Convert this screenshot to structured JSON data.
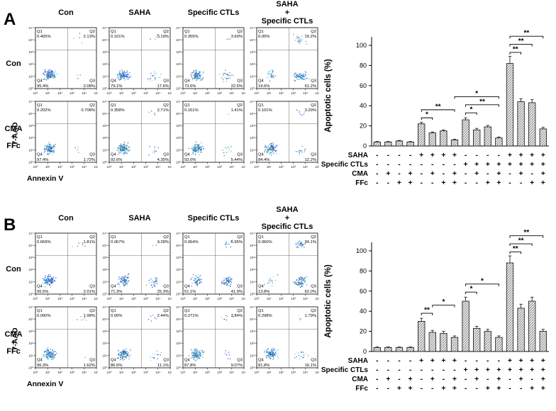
{
  "panels": [
    {
      "label": "A",
      "col_headers": [
        "Con",
        "SAHA",
        "Specific CTLs",
        "SAHA\n+\nSpecific CTLs"
      ],
      "row_headers": [
        "Con",
        "CMA\n+\nFFc"
      ],
      "x_axis_label": "Annexin V",
      "y_axis_label": "7-AAD",
      "flow_ticks": [
        "10⁰",
        "10¹",
        "10²",
        "10³",
        "10⁴",
        "10⁵"
      ],
      "quad_labels": {
        "q1": "Q1",
        "q2": "Q2",
        "q3": "Q3",
        "q4": "Q4"
      },
      "plots": [
        [
          {
            "q1": "0.405%",
            "q2": "2.13%",
            "q4": "95.4%",
            "q3": "2.08%"
          },
          {
            "q1": "0.101%",
            "q2": "3.19%",
            "q4": "79.1%",
            "q3": "17.6%"
          },
          {
            "q1": "0.355%",
            "q2": "3.60%",
            "q4": "73.6%",
            "q3": "22.5%"
          },
          {
            "q1": "0.00%",
            "q2": "19.2%",
            "q4": "19.6%",
            "q3": "61.2%"
          }
        ],
        [
          {
            "q1": "0.202%",
            "q2": "0.708%",
            "q4": "97.4%",
            "q3": "1.72%"
          },
          {
            "q1": "0.358%",
            "q2": "2.71%",
            "q4": "92.6%",
            "q3": "4.35%"
          },
          {
            "q1": "0.151%",
            "q2": "1.41%",
            "q4": "93.0%",
            "q3": "5.44%"
          },
          {
            "q1": "0.101%",
            "q2": "3.29%",
            "q4": "84.4%",
            "q3": "12.2%"
          }
        ]
      ]
    },
    {
      "label": "B",
      "col_headers": [
        "Con",
        "SAHA",
        "Specific CTLs",
        "SAHA\n+\nSpecific CTLs"
      ],
      "row_headers": [
        "Con",
        "CMA\n+\nFFc"
      ],
      "x_axis_label": "Annexin V",
      "y_axis_label": "7-AAD",
      "flow_ticks": [
        "10⁰",
        "10¹",
        "10²",
        "10³",
        "10⁴",
        "10⁵"
      ],
      "quad_labels": {
        "q1": "Q1",
        "q2": "Q2",
        "q3": "Q3",
        "q4": "Q4"
      },
      "plots": [
        [
          {
            "q1": "0.669%",
            "q2": "1.81%",
            "q4": "95.5%",
            "q3": "2.01%"
          },
          {
            "q1": "0.067%",
            "q2": "3.28%",
            "q4": "71.3%",
            "q3": "25.3%"
          },
          {
            "q1": "0.064%",
            "q2": "6.95%",
            "q4": "51.1%",
            "q3": "41.9%"
          },
          {
            "q1": "0.060%",
            "q2": "24.1%",
            "q4": "13.8%",
            "q3": "62.0%"
          }
        ],
        [
          {
            "q1": "0.090%",
            "q2": "1.98%",
            "q4": "96.3%",
            "q3": "1.62%"
          },
          {
            "q1": "0.00%",
            "q2": "2.44%",
            "q4": "86.5%",
            "q3": "11.1%"
          },
          {
            "q1": "0.271%",
            "q2": "2.84%",
            "q4": "87.8%",
            "q3": "9.07%"
          },
          {
            "q1": "0.298%",
            "q2": "1.79%",
            "q4": "81.8%",
            "q3": "16.1%"
          }
        ]
      ]
    }
  ],
  "chart_data": [
    {
      "type": "bar",
      "panel": "A",
      "title": "",
      "xlabel": "",
      "ylabel": "Apoptotic cells (%)",
      "ylim": [
        0,
        100
      ],
      "yticks": [
        0,
        20,
        40,
        60,
        80,
        100
      ],
      "values": [
        4,
        4,
        5,
        4,
        22,
        13,
        15,
        6,
        26,
        16,
        19,
        8,
        82,
        44,
        43,
        17
      ],
      "errors": [
        0.5,
        0.5,
        0.5,
        0.5,
        1.5,
        1,
        1,
        0.8,
        2,
        1.5,
        1.5,
        1,
        7,
        3,
        3,
        1.5
      ],
      "conditions": [
        {
          "label": "SAHA",
          "signs": [
            "-",
            "-",
            "-",
            "-",
            "+",
            "+",
            "+",
            "+",
            "-",
            "-",
            "-",
            "-",
            "+",
            "+",
            "+",
            "+"
          ]
        },
        {
          "label": "Specific CTLs",
          "signs": [
            "-",
            "-",
            "-",
            "-",
            "-",
            "-",
            "-",
            "-",
            "+",
            "+",
            "+",
            "+",
            "+",
            "+",
            "+",
            "+"
          ]
        },
        {
          "label": "CMA",
          "signs": [
            "-",
            "+",
            "-",
            "+",
            "-",
            "+",
            "-",
            "+",
            "-",
            "+",
            "-",
            "+",
            "-",
            "+",
            "-",
            "+"
          ]
        },
        {
          "label": "FFc",
          "signs": [
            "-",
            "-",
            "+",
            "+",
            "-",
            "-",
            "+",
            "+",
            "-",
            "-",
            "+",
            "+",
            "-",
            "-",
            "+",
            "+"
          ]
        }
      ],
      "significance": [
        {
          "from": 5,
          "to": 6,
          "label": "*",
          "y": 28
        },
        {
          "from": 5,
          "to": 8,
          "label": "**",
          "y": 36
        },
        {
          "from": 9,
          "to": 10,
          "label": "*",
          "y": 33
        },
        {
          "from": 9,
          "to": 12,
          "label": "**",
          "y": 41
        },
        {
          "from": 8,
          "to": 12,
          "label": "*",
          "y": 49
        },
        {
          "from": 13,
          "to": 14,
          "label": "**",
          "y": 93
        },
        {
          "from": 13,
          "to": 15,
          "label": "**",
          "y": 101
        },
        {
          "from": 13,
          "to": 16,
          "label": "**",
          "y": 109
        }
      ]
    },
    {
      "type": "bar",
      "panel": "B",
      "title": "",
      "xlabel": "",
      "ylabel": "Apoptotic cells (%)",
      "ylim": [
        0,
        100
      ],
      "yticks": [
        0,
        20,
        40,
        60,
        80,
        100
      ],
      "values": [
        4,
        4,
        4,
        4,
        30,
        19,
        18,
        14,
        50,
        23,
        20,
        14,
        88,
        43,
        50,
        20
      ],
      "errors": [
        0.5,
        0.5,
        0.5,
        0.5,
        3,
        2,
        2,
        1.5,
        4,
        2,
        2,
        1.5,
        7,
        4,
        4,
        2
      ],
      "conditions": [
        {
          "label": "SAHA",
          "signs": [
            "-",
            "-",
            "-",
            "-",
            "+",
            "+",
            "+",
            "+",
            "-",
            "-",
            "-",
            "-",
            "+",
            "+",
            "+",
            "+"
          ]
        },
        {
          "label": "Specific CTLs",
          "signs": [
            "-",
            "-",
            "-",
            "-",
            "-",
            "-",
            "-",
            "-",
            "+",
            "+",
            "+",
            "+",
            "+",
            "+",
            "+",
            "+"
          ]
        },
        {
          "label": "CMA",
          "signs": [
            "-",
            "+",
            "-",
            "+",
            "-",
            "+",
            "-",
            "+",
            "-",
            "+",
            "-",
            "+",
            "-",
            "+",
            "-",
            "+"
          ]
        },
        {
          "label": "FFc",
          "signs": [
            "-",
            "-",
            "+",
            "+",
            "-",
            "-",
            "+",
            "+",
            "-",
            "-",
            "+",
            "+",
            "-",
            "-",
            "+",
            "+"
          ]
        }
      ],
      "significance": [
        {
          "from": 5,
          "to": 6,
          "label": "**",
          "y": 38
        },
        {
          "from": 6,
          "to": 8,
          "label": "*",
          "y": 46
        },
        {
          "from": 9,
          "to": 10,
          "label": "*",
          "y": 59
        },
        {
          "from": 9,
          "to": 12,
          "label": "*",
          "y": 67
        },
        {
          "from": 13,
          "to": 14,
          "label": "**",
          "y": 99
        },
        {
          "from": 13,
          "to": 15,
          "label": "**",
          "y": 107
        },
        {
          "from": 13,
          "to": 16,
          "label": "**",
          "y": 115
        }
      ]
    }
  ]
}
